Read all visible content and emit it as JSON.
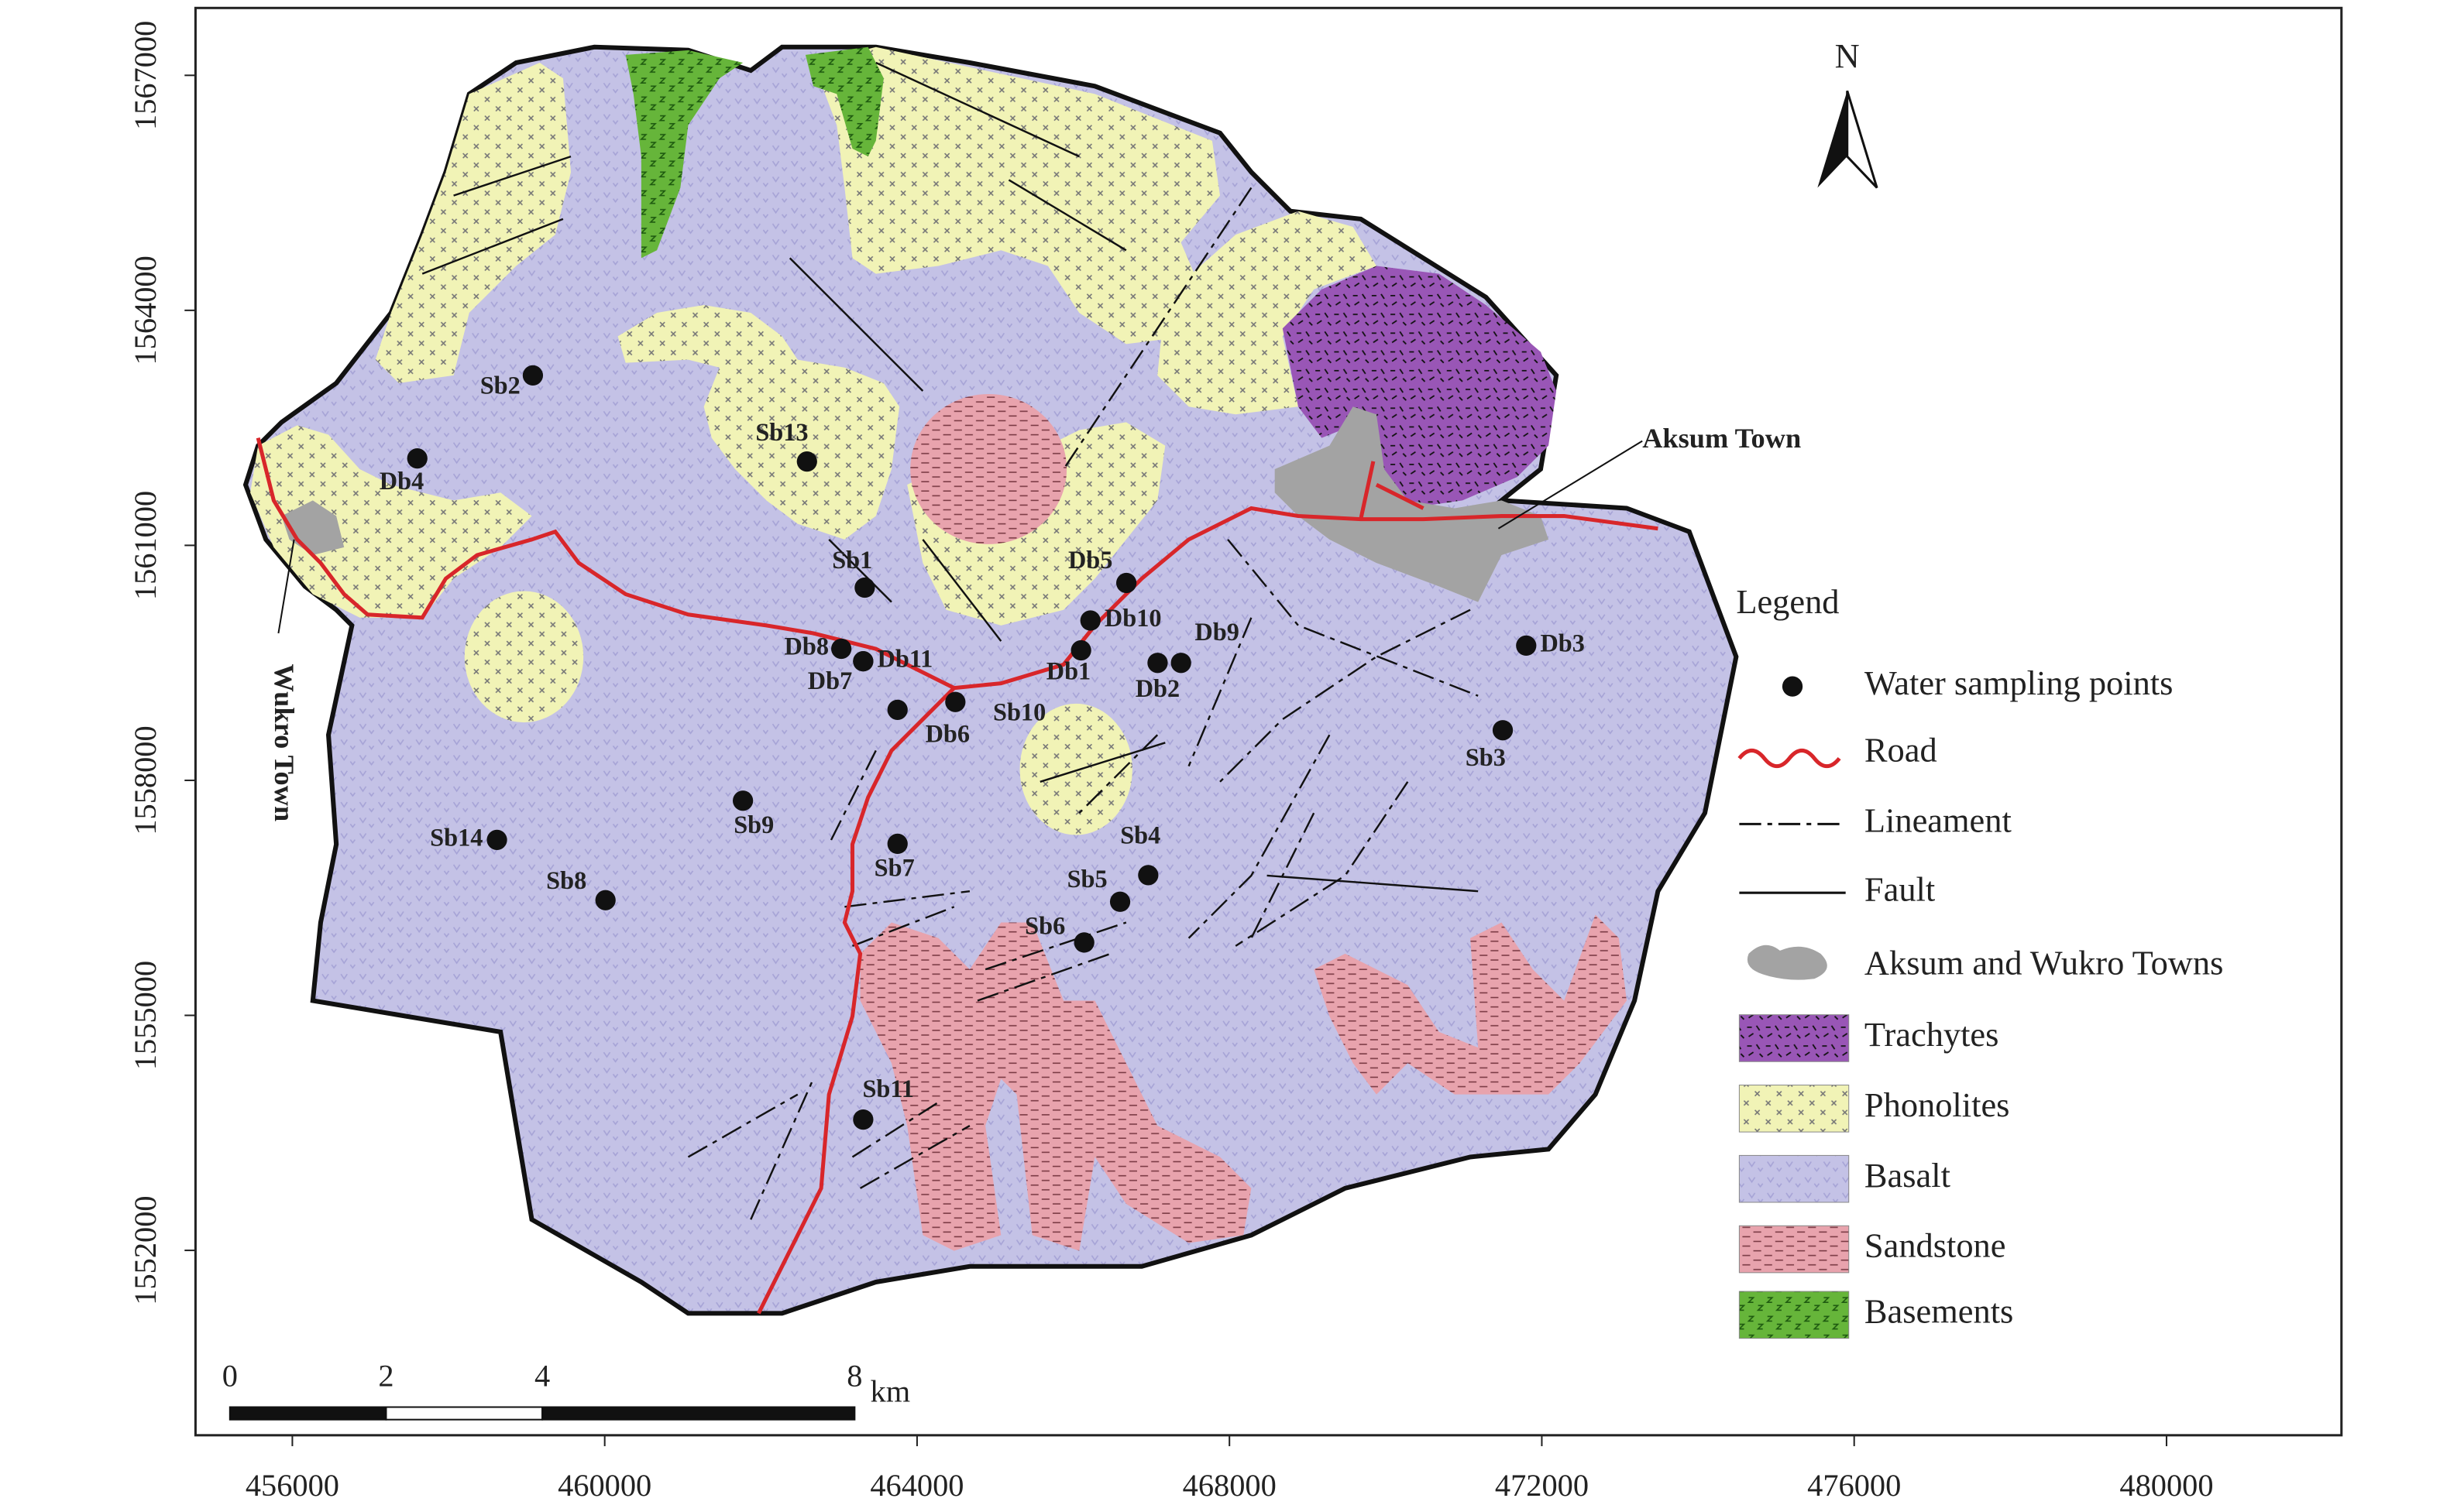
{
  "map": {
    "xlim": [
      454760,
      482240
    ],
    "ylim": [
      1549640,
      1567860
    ],
    "xticks": [
      456000,
      460000,
      464000,
      468000,
      472000,
      476000,
      480000
    ],
    "yticks": [
      1552000,
      1555000,
      1558000,
      1561000,
      1564000,
      1567000
    ],
    "north": "N",
    "towns": [
      "Aksum Town",
      "Wukro Town"
    ],
    "points": [
      {
        "label": "Sb2",
        "x": 459080,
        "y": 1563170
      },
      {
        "label": "Db4",
        "x": 457600,
        "y": 1562110
      },
      {
        "label": "Sb13",
        "x": 462590,
        "y": 1562070
      },
      {
        "label": "Sb1",
        "x": 463330,
        "y": 1560460
      },
      {
        "label": "Db5",
        "x": 466680,
        "y": 1560520
      },
      {
        "label": "Db10",
        "x": 466220,
        "y": 1560040
      },
      {
        "label": "Db8",
        "x": 463030,
        "y": 1559680
      },
      {
        "label": "Db11",
        "x": 463310,
        "y": 1559520
      },
      {
        "label": "Db7",
        "x": 463310,
        "y": 1559520
      },
      {
        "label": "Db1",
        "x": 466100,
        "y": 1559660
      },
      {
        "label": "Db2",
        "x": 467080,
        "y": 1559500
      },
      {
        "label": "Db9",
        "x": 467380,
        "y": 1559500
      },
      {
        "label": "Db3",
        "x": 471800,
        "y": 1559720
      },
      {
        "label": "Sb10",
        "x": 464490,
        "y": 1559000
      },
      {
        "label": "Db6",
        "x": 463750,
        "y": 1558900
      },
      {
        "label": "Sb3",
        "x": 471500,
        "y": 1558640
      },
      {
        "label": "Sb9",
        "x": 461770,
        "y": 1557740
      },
      {
        "label": "Sb14",
        "x": 458620,
        "y": 1557240
      },
      {
        "label": "Sb7",
        "x": 463750,
        "y": 1557190
      },
      {
        "label": "Sb4",
        "x": 466960,
        "y": 1556790
      },
      {
        "label": "Sb5",
        "x": 466600,
        "y": 1556450
      },
      {
        "label": "Sb8",
        "x": 460010,
        "y": 1556470
      },
      {
        "label": "Sb6",
        "x": 466140,
        "y": 1555930
      },
      {
        "label": "Sb11",
        "x": 463310,
        "y": 1553670
      }
    ],
    "scale_bar": {
      "ticks": [
        0,
        2,
        4,
        8
      ],
      "unit": "km"
    },
    "legend": {
      "title": "Legend",
      "items": [
        "Water sampling points",
        "Road",
        "Lineament",
        "Fault",
        "Aksum and Wukro Towns",
        "Trachytes",
        "Phonolites",
        "Basalt",
        "Sandstone",
        "Basements"
      ]
    }
  }
}
